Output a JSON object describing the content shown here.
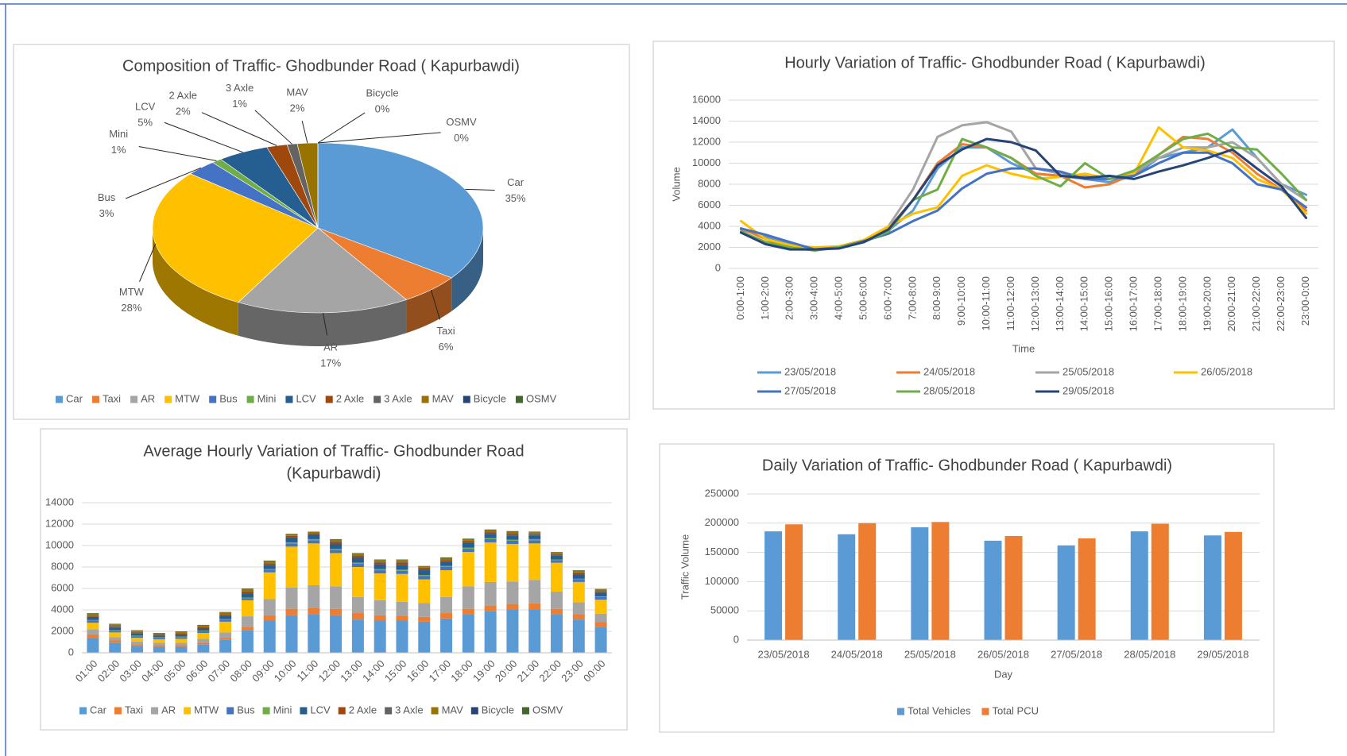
{
  "chart_data": [
    {
      "type": "pie",
      "title": "Composition of Traffic- Ghodbunder Road ( Kapurbawdi)",
      "categories": [
        "Car",
        "Taxi",
        "AR",
        "MTW",
        "Bus",
        "Mini",
        "LCV",
        "2 Axle",
        "3 Axle",
        "MAV",
        "Bicycle",
        "OSMV"
      ],
      "values": [
        35,
        6,
        17,
        28,
        3,
        1,
        5,
        2,
        1,
        2,
        0,
        0
      ],
      "value_labels": [
        "35%",
        "6%",
        "17%",
        "28%",
        "3%",
        "1%",
        "5%",
        "2%",
        "1%",
        "2%",
        "0%",
        "0%"
      ],
      "colors": [
        "#5b9bd5",
        "#ed7d31",
        "#a5a5a5",
        "#ffc000",
        "#4472c4",
        "#70ad47",
        "#255e91",
        "#9e480e",
        "#636363",
        "#997300",
        "#264478",
        "#43682b"
      ],
      "legend": "bottom"
    },
    {
      "type": "line",
      "title": "Hourly Variation of Traffic- Ghodbunder Road ( Kapurbawdi)",
      "x_label": "Time",
      "y_label": "Volume",
      "categories": [
        "0:00-1:00",
        "1:00-2:00",
        "2:00-3:00",
        "3:00-4:00",
        "4:00-5:00",
        "5:00-6:00",
        "6:00-7:00",
        "7:00-8:00",
        "8:00-9:00",
        "9:00-10:00",
        "10:00-11:00",
        "11:00-12:00",
        "12:00-13:00",
        "13:00-14:00",
        "14:00-15:00",
        "15:00-16:00",
        "16:00-17:00",
        "17:00-18:00",
        "18:00-19:00",
        "19:00-20:00",
        "20:00-21:00",
        "21:00-22:00",
        "22:00-23:00",
        "23:00-0:00"
      ],
      "series": [
        {
          "name": "23/05/2018",
          "color": "#5b9bd5",
          "values": [
            3700,
            3000,
            2300,
            1800,
            2000,
            2600,
            3600,
            5500,
            9500,
            11500,
            11500,
            10000,
            9000,
            8800,
            8500,
            8200,
            8800,
            10500,
            11000,
            11500,
            13200,
            10500,
            8000,
            7000
          ]
        },
        {
          "name": "24/05/2018",
          "color": "#ed7d31",
          "values": [
            3800,
            2800,
            2000,
            1900,
            2000,
            2600,
            3800,
            6500,
            10000,
            11800,
            11500,
            10500,
            9000,
            8800,
            7700,
            8000,
            9000,
            10800,
            12500,
            12300,
            11000,
            9000,
            7500,
            5500
          ]
        },
        {
          "name": "25/05/2018",
          "color": "#a5a5a5",
          "values": [
            3500,
            2500,
            2000,
            1800,
            2000,
            2600,
            4000,
            7500,
            12500,
            13600,
            13900,
            13000,
            9500,
            9000,
            8800,
            8500,
            9200,
            10500,
            11500,
            11500,
            12000,
            10500,
            8000,
            6500
          ]
        },
        {
          "name": "26/05/2018",
          "color": "#ffc000",
          "values": [
            4500,
            2800,
            2200,
            2000,
            2100,
            2700,
            4000,
            5200,
            5800,
            8800,
            9800,
            9000,
            8500,
            8700,
            9000,
            8500,
            9000,
            13400,
            11500,
            11200,
            10500,
            8500,
            7500,
            5200
          ]
        },
        {
          "name": "27/05/2018",
          "color": "#4472c4",
          "values": [
            3800,
            3200,
            2500,
            1800,
            2000,
            2600,
            3300,
            4500,
            5500,
            7600,
            9000,
            9500,
            9500,
            9200,
            8500,
            8500,
            8800,
            10000,
            11000,
            11000,
            10000,
            8000,
            7500,
            5800
          ]
        },
        {
          "name": "28/05/2018",
          "color": "#70ad47",
          "values": [
            3500,
            2500,
            2000,
            1700,
            2000,
            2500,
            3500,
            6500,
            7500,
            12300,
            11500,
            10500,
            8800,
            7800,
            10000,
            8500,
            9300,
            10800,
            12300,
            12800,
            11500,
            11300,
            9000,
            6500
          ]
        },
        {
          "name": "29/05/2018",
          "color": "#264478",
          "values": [
            3400,
            2300,
            1800,
            1800,
            1900,
            2500,
            3700,
            6500,
            9800,
            11300,
            12300,
            12000,
            11200,
            8800,
            8600,
            8800,
            8500,
            9200,
            9800,
            10500,
            11300,
            9500,
            7800,
            4800
          ]
        }
      ],
      "ylim": [
        0,
        16000
      ],
      "yticks": [
        0,
        2000,
        4000,
        6000,
        8000,
        10000,
        12000,
        14000,
        16000
      ],
      "grid": true,
      "legend": "bottom"
    },
    {
      "type": "bar",
      "stacked": true,
      "title": [
        "Average Hourly Variation of Traffic- Ghodbunder Road",
        "(Kapurbawdi)"
      ],
      "categories": [
        "01:00",
        "02:00",
        "03:00",
        "04:00",
        "05:00",
        "06:00",
        "07:00",
        "08:00",
        "09:00",
        "10:00",
        "11:00",
        "12:00",
        "13:00",
        "14:00",
        "15:00",
        "16:00",
        "17:00",
        "18:00",
        "19:00",
        "20:00",
        "21:00",
        "22:00",
        "23:00",
        "00:00"
      ],
      "series": [
        {
          "name": "Car",
          "color": "#5b9bd5",
          "values": [
            1400,
            900,
            600,
            550,
            550,
            800,
            1200,
            2100,
            3000,
            3500,
            3600,
            3500,
            3100,
            3000,
            3000,
            2900,
            3200,
            3600,
            3900,
            4000,
            4000,
            3600,
            3100,
            2400
          ]
        },
        {
          "name": "Taxi",
          "color": "#ed7d31",
          "values": [
            300,
            250,
            200,
            150,
            150,
            150,
            200,
            300,
            500,
            600,
            600,
            600,
            600,
            500,
            450,
            450,
            500,
            500,
            500,
            550,
            600,
            500,
            500,
            450
          ]
        },
        {
          "name": "AR",
          "color": "#a5a5a5",
          "values": [
            500,
            300,
            250,
            250,
            250,
            350,
            500,
            1000,
            1500,
            2000,
            2100,
            2100,
            1500,
            1400,
            1300,
            1300,
            1500,
            2100,
            2200,
            2100,
            2200,
            1600,
            1100,
            800
          ]
        },
        {
          "name": "MTW",
          "color": "#ffc000",
          "values": [
            600,
            450,
            350,
            300,
            350,
            550,
            1000,
            1500,
            2500,
            3800,
            3900,
            3100,
            2800,
            2500,
            2600,
            2200,
            2500,
            3200,
            3700,
            3500,
            3400,
            2700,
            1900,
            1300
          ]
        },
        {
          "name": "Bus",
          "color": "#4472c4",
          "values": [
            200,
            150,
            150,
            150,
            150,
            150,
            200,
            200,
            250,
            300,
            300,
            300,
            300,
            300,
            300,
            300,
            300,
            300,
            300,
            300,
            300,
            250,
            250,
            250
          ]
        },
        {
          "name": "Mini",
          "color": "#70ad47",
          "values": [
            50,
            50,
            50,
            50,
            50,
            50,
            50,
            50,
            50,
            100,
            100,
            100,
            100,
            100,
            100,
            100,
            100,
            100,
            100,
            100,
            100,
            50,
            50,
            50
          ]
        },
        {
          "name": "LCV",
          "color": "#255e91",
          "values": [
            300,
            250,
            200,
            150,
            200,
            250,
            300,
            400,
            400,
            450,
            400,
            450,
            450,
            450,
            450,
            450,
            400,
            450,
            400,
            400,
            350,
            350,
            400,
            350
          ]
        },
        {
          "name": "2 Axle",
          "color": "#9e480e",
          "values": [
            100,
            100,
            100,
            100,
            100,
            100,
            100,
            150,
            150,
            150,
            100,
            150,
            150,
            150,
            200,
            150,
            150,
            150,
            150,
            150,
            100,
            100,
            150,
            100
          ]
        },
        {
          "name": "3 Axle",
          "color": "#636363",
          "values": [
            50,
            50,
            50,
            50,
            50,
            50,
            50,
            50,
            50,
            50,
            50,
            100,
            100,
            100,
            100,
            100,
            50,
            50,
            50,
            50,
            50,
            50,
            50,
            50
          ]
        },
        {
          "name": "MAV",
          "color": "#997300",
          "values": [
            150,
            150,
            100,
            100,
            100,
            100,
            150,
            200,
            150,
            150,
            150,
            150,
            150,
            150,
            150,
            150,
            150,
            150,
            150,
            150,
            150,
            150,
            150,
            150
          ]
        },
        {
          "name": "Bicycle",
          "color": "#264478",
          "values": [
            0,
            0,
            0,
            0,
            0,
            0,
            0,
            0,
            0,
            0,
            0,
            0,
            0,
            0,
            0,
            0,
            0,
            0,
            0,
            0,
            0,
            0,
            0,
            0
          ]
        },
        {
          "name": "OSMV",
          "color": "#43682b",
          "values": [
            50,
            50,
            50,
            0,
            50,
            50,
            50,
            50,
            50,
            0,
            0,
            50,
            50,
            50,
            50,
            0,
            50,
            50,
            50,
            50,
            50,
            50,
            50,
            50
          ]
        }
      ],
      "ylim": [
        0,
        14000
      ],
      "yticks": [
        0,
        2000,
        4000,
        6000,
        8000,
        10000,
        12000,
        14000
      ],
      "grid": true,
      "legend": "bottom"
    },
    {
      "type": "bar",
      "stacked": false,
      "title": "Daily Variation of Traffic- Ghodbunder Road ( Kapurbawdi)",
      "x_label": "Day",
      "y_label": "Traffic Volume",
      "categories": [
        "23/05/2018",
        "24/05/2018",
        "25/05/2018",
        "26/05/2018",
        "27/05/2018",
        "28/05/2018",
        "29/05/2018"
      ],
      "series": [
        {
          "name": "Total Vehicles",
          "color": "#5b9bd5",
          "values": [
            186000,
            181000,
            193000,
            170000,
            162000,
            186000,
            179000
          ]
        },
        {
          "name": "Total PCU",
          "color": "#ed7d31",
          "values": [
            198000,
            200000,
            202000,
            178000,
            174000,
            199000,
            185000
          ]
        }
      ],
      "ylim": [
        0,
        250000
      ],
      "yticks": [
        0,
        50000,
        100000,
        150000,
        200000,
        250000
      ],
      "grid": true,
      "legend": "bottom"
    }
  ]
}
